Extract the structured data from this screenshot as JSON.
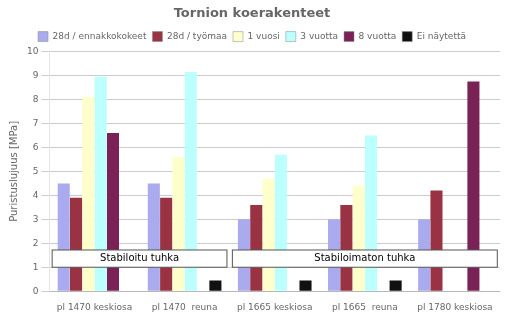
{
  "chart_data": {
    "type": "bar",
    "title": "Tornion koerakenteet",
    "ylabel": "Puristuslujuus [MPa]",
    "categories": [
      "pl 1470 keskiosa",
      "pl 1470  reuna",
      "pl 1665 keskiosa",
      "pl 1665  reuna",
      "pl 1780 keskiosa"
    ],
    "series": [
      {
        "name": "28d / ennakkokokeet",
        "color": "#aaaaee",
        "values": [
          4.5,
          4.5,
          3.0,
          3.0,
          3.0
        ]
      },
      {
        "name": "28d / työmaa",
        "color": "#993344",
        "values": [
          3.9,
          3.9,
          3.6,
          3.6,
          4.2
        ]
      },
      {
        "name": "1 vuosi",
        "color": "#ffffcc",
        "values": [
          8.1,
          5.6,
          4.7,
          4.4,
          0.0
        ]
      },
      {
        "name": "3 vuotta",
        "color": "#bbffff",
        "values": [
          8.95,
          9.15,
          5.7,
          6.5,
          0.0
        ]
      },
      {
        "name": "8 vuotta",
        "color": "#7a2255",
        "values": [
          6.6,
          0.0,
          0.0,
          0.0,
          8.75
        ]
      },
      {
        "name": "Ei näytettä",
        "color": "#111111",
        "values": [
          0.0,
          0.45,
          0.45,
          0.45,
          0.0
        ]
      }
    ],
    "ylim": [
      0,
      10
    ],
    "yticks": [
      0,
      1,
      2,
      3,
      4,
      5,
      6,
      7,
      8,
      9,
      10
    ],
    "grid": true,
    "legend": "top",
    "annotations": [
      {
        "text": "Stabiloitu tuhka",
        "categories": [
          "pl 1470 keskiosa",
          "pl 1470  reuna"
        ]
      },
      {
        "text": "Stabiloimaton tuhka",
        "categories": [
          "pl 1665 keskiosa",
          "pl 1665  reuna",
          "pl 1780 keskiosa"
        ]
      }
    ]
  }
}
